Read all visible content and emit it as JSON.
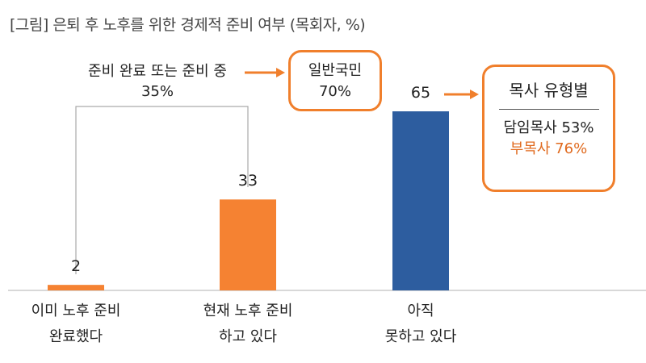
{
  "title": "[그림] 은퇴 후 노후를 위한 경제적 준비 여부 (목회자, %)",
  "note": {
    "line1": "준비 완료 또는 준비 중",
    "line2": "35%"
  },
  "general_public": {
    "line1": "일반국민",
    "line2": "70%"
  },
  "pastor_type": {
    "heading": "목사 유형별",
    "item1": "담임목사  53%",
    "item2": "부목사  76%"
  },
  "colors": {
    "orange": "#f58232",
    "blue": "#2d5d9f",
    "callout_border": "#f07f2c",
    "highlight_text": "#e06a1e"
  },
  "chart_data": {
    "type": "bar",
    "title": "[그림] 은퇴 후 노후를 위한 경제적 준비 여부 (목회자, %)",
    "categories": [
      [
        "이미 노후 준비",
        "완료했다"
      ],
      [
        "현재 노후 준비",
        "하고 있다"
      ],
      [
        "아직",
        "못하고 있다"
      ]
    ],
    "values": [
      2,
      33,
      65
    ],
    "bar_colors": [
      "#f58232",
      "#f58232",
      "#2d5d9f"
    ],
    "ylim": [
      0,
      65
    ],
    "grid": false,
    "legend": "none"
  }
}
